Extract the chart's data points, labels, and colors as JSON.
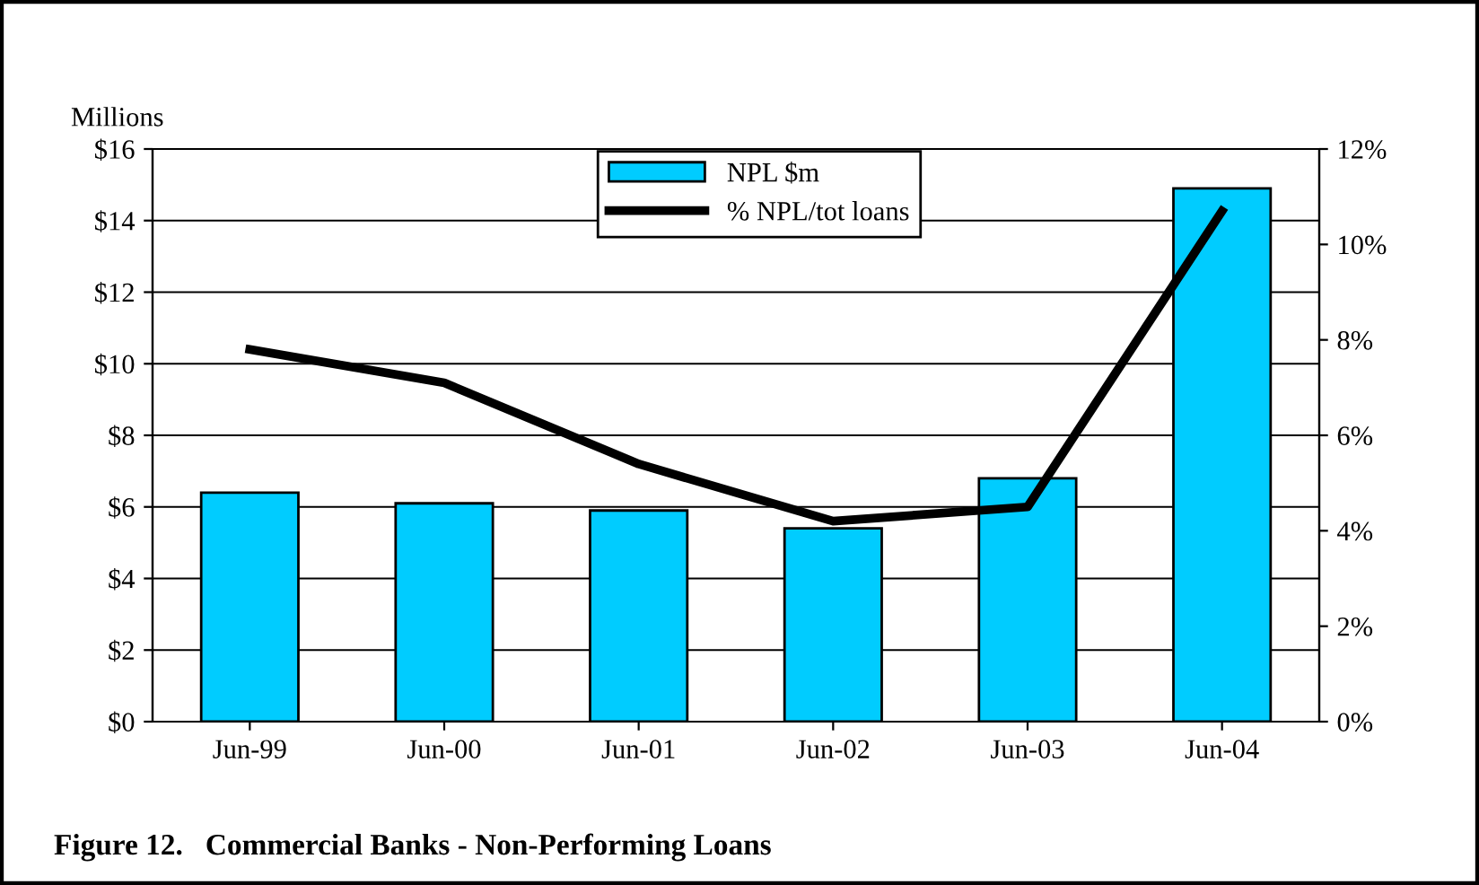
{
  "chart_data": {
    "type": "bar",
    "title": "Figure 12.   Commercial Banks - Non-Performing Loans",
    "ylabel": "Millions",
    "categories": [
      "Jun-99",
      "Jun-00",
      "Jun-01",
      "Jun-02",
      "Jun-03",
      "Jun-04"
    ],
    "series": [
      {
        "name": "NPL $m",
        "color": "#00ccff",
        "values": [
          6.4,
          6.1,
          5.9,
          5.4,
          6.8,
          14.9
        ]
      },
      {
        "name": "% NPL/tot loans",
        "type": "line",
        "axis": "y2",
        "color": "#000000",
        "values": [
          7.8,
          7.1,
          5.4,
          4.2,
          4.5,
          10.7
        ]
      }
    ],
    "ylim": [
      0,
      16
    ],
    "yticks": [
      {
        "value": 0,
        "label": "$0"
      },
      {
        "value": 2,
        "label": "$2"
      },
      {
        "value": 4,
        "label": "$4"
      },
      {
        "value": 6,
        "label": "$6"
      },
      {
        "value": 8,
        "label": "$8"
      },
      {
        "value": 10,
        "label": "$10"
      },
      {
        "value": 12,
        "label": "$12"
      },
      {
        "value": 14,
        "label": "$14"
      },
      {
        "value": 16,
        "label": "$16"
      }
    ],
    "y2lim": [
      0,
      12
    ],
    "y2ticks": [
      {
        "value": 0,
        "label": "0%"
      },
      {
        "value": 2,
        "label": "2%"
      },
      {
        "value": 4,
        "label": "4%"
      },
      {
        "value": 6,
        "label": "6%"
      },
      {
        "value": 8,
        "label": "8%"
      },
      {
        "value": 10,
        "label": "10%"
      },
      {
        "value": 12,
        "label": "12%"
      }
    ],
    "grid": "y",
    "legend": "top",
    "marker": "none",
    "line_style": "solid"
  }
}
